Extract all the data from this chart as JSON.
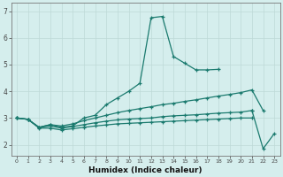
{
  "x": [
    0,
    1,
    2,
    3,
    4,
    5,
    6,
    7,
    8,
    9,
    10,
    11,
    12,
    13,
    14,
    15,
    16,
    17,
    18,
    19,
    20,
    21,
    22,
    23
  ],
  "curve_main": [
    3.0,
    2.95,
    2.65,
    2.75,
    2.65,
    2.7,
    3.0,
    3.1,
    3.5,
    3.75,
    4.0,
    4.3,
    6.75,
    6.8,
    5.3,
    5.05,
    4.8,
    4.8,
    4.82,
    null,
    null,
    null,
    null,
    null
  ],
  "curve_upper": [
    3.0,
    null,
    null,
    null,
    null,
    null,
    null,
    null,
    null,
    null,
    null,
    null,
    null,
    null,
    null,
    null,
    null,
    null,
    null,
    null,
    null,
    3.3,
    null,
    null
  ],
  "curve_line1": [
    3.0,
    2.95,
    2.65,
    2.75,
    2.7,
    2.78,
    2.9,
    3.0,
    3.1,
    3.2,
    3.28,
    3.35,
    3.42,
    3.5,
    3.55,
    3.62,
    3.68,
    3.75,
    3.82,
    3.88,
    3.95,
    4.05,
    3.28,
    null
  ],
  "curve_line2": [
    3.0,
    2.95,
    2.65,
    2.7,
    2.62,
    2.68,
    2.75,
    2.82,
    2.88,
    2.93,
    2.96,
    2.98,
    3.0,
    3.05,
    3.08,
    3.1,
    3.12,
    3.15,
    3.18,
    3.2,
    3.22,
    3.28,
    null,
    null
  ],
  "curve_line3": [
    3.0,
    2.95,
    2.62,
    2.62,
    2.55,
    2.6,
    2.65,
    2.7,
    2.74,
    2.78,
    2.8,
    2.82,
    2.84,
    2.86,
    2.88,
    2.9,
    2.92,
    2.94,
    2.96,
    2.98,
    3.0,
    3.0,
    null,
    null
  ],
  "curve_end": [
    null,
    null,
    null,
    null,
    null,
    null,
    null,
    null,
    null,
    null,
    null,
    null,
    null,
    null,
    null,
    null,
    null,
    null,
    null,
    null,
    null,
    3.28,
    1.85,
    2.42
  ],
  "xlim": [
    -0.5,
    23.5
  ],
  "ylim": [
    1.6,
    7.3
  ],
  "yticks": [
    2,
    3,
    4,
    5,
    6,
    7
  ],
  "xticks": [
    0,
    1,
    2,
    3,
    4,
    5,
    6,
    7,
    8,
    9,
    10,
    11,
    12,
    13,
    14,
    15,
    16,
    17,
    18,
    19,
    20,
    21,
    22,
    23
  ],
  "xlabel": "Humidex (Indice chaleur)",
  "bg_color": "#d5eeed",
  "line_color": "#1a7a6e",
  "grid_color": "#bdd9d7"
}
